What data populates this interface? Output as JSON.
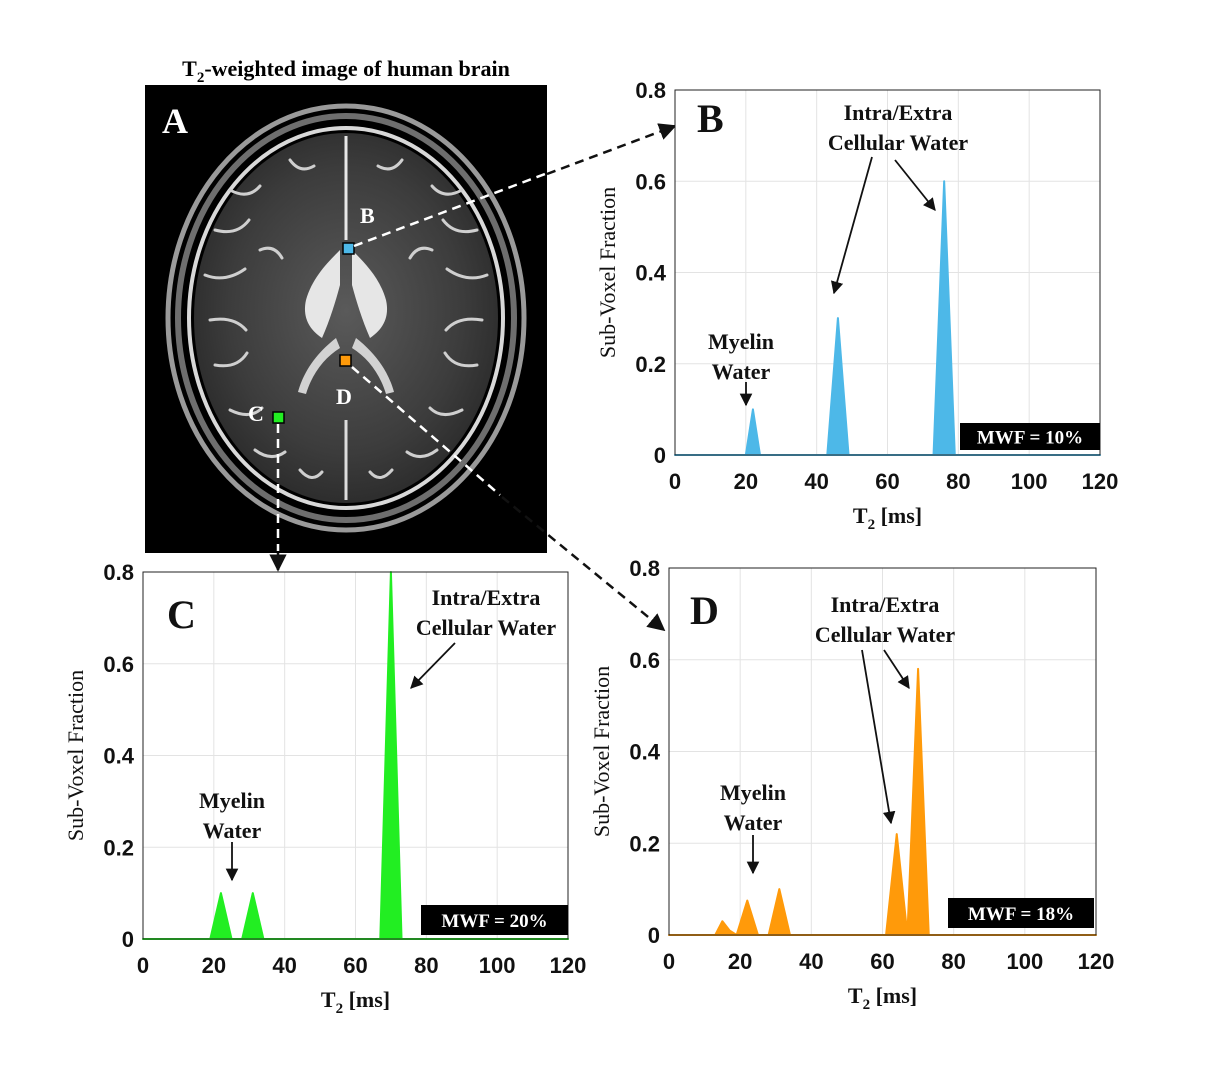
{
  "panel_a": {
    "title_prefix": "T",
    "title_sub": "2",
    "title_rest": "-weighted image of human brain",
    "letter": "A",
    "roi_labels": {
      "b": "B",
      "c": "C",
      "d": "D"
    }
  },
  "colors": {
    "b": "#4db8e8",
    "c": "#22ee22",
    "d": "#ff9a0a"
  },
  "chart_data": [
    {
      "id": "b",
      "type": "area",
      "panel_letter": "B",
      "xlabel_prefix": "T",
      "xlabel_sub": "2",
      "xlabel_rest": " [ms]",
      "ylabel": "Sub-Voxel Fraction",
      "xlim": [
        0,
        120
      ],
      "ylim": [
        0,
        0.8
      ],
      "xticks": [
        0,
        20,
        40,
        60,
        80,
        100,
        120
      ],
      "yticks": [
        0,
        0.2,
        0.4,
        0.6,
        0.8
      ],
      "grid": true,
      "mwf": "MWF = 10%",
      "annotations": {
        "myelin": [
          "Myelin",
          "Water"
        ],
        "ie": [
          "Intra/Extra",
          "Cellular Water"
        ]
      },
      "x": [
        0,
        20,
        22,
        24,
        43,
        46,
        49,
        73,
        76,
        79,
        120
      ],
      "y": [
        0,
        0,
        0.1,
        0,
        0,
        0.3,
        0,
        0,
        0.6,
        0,
        0
      ]
    },
    {
      "id": "c",
      "type": "area",
      "panel_letter": "C",
      "xlabel_prefix": "T",
      "xlabel_sub": "2",
      "xlabel_rest": " [ms]",
      "ylabel": "Sub-Voxel Fraction",
      "xlim": [
        0,
        120
      ],
      "ylim": [
        0,
        0.8
      ],
      "xticks": [
        0,
        20,
        40,
        60,
        80,
        100,
        120
      ],
      "yticks": [
        0,
        0.2,
        0.4,
        0.6,
        0.8
      ],
      "grid": true,
      "mwf": "MWF = 20%",
      "annotations": {
        "myelin": [
          "Myelin",
          "Water"
        ],
        "ie": [
          "Intra/Extra",
          "Cellular Water"
        ]
      },
      "x": [
        0,
        19,
        22,
        25,
        28,
        31,
        34,
        67,
        70,
        73,
        120
      ],
      "y": [
        0,
        0,
        0.1,
        0,
        0,
        0.1,
        0,
        0,
        0.8,
        0,
        0
      ]
    },
    {
      "id": "d",
      "type": "area",
      "panel_letter": "D",
      "xlabel_prefix": "T",
      "xlabel_sub": "2",
      "xlabel_rest": " [ms]",
      "ylabel": "Sub-Voxel Fraction",
      "xlim": [
        0,
        120
      ],
      "ylim": [
        0,
        0.8
      ],
      "xticks": [
        0,
        20,
        40,
        60,
        80,
        100,
        120
      ],
      "yticks": [
        0,
        0.2,
        0.4,
        0.6,
        0.8
      ],
      "grid": true,
      "mwf": "MWF = 18%",
      "annotations": {
        "myelin": [
          "Myelin",
          "Water"
        ],
        "ie": [
          "Intra/Extra",
          "Cellular Water"
        ]
      },
      "x": [
        0,
        13,
        15,
        17,
        19,
        22,
        25,
        28,
        31,
        34,
        61,
        64,
        67,
        70,
        73,
        120
      ],
      "y": [
        0,
        0,
        0.03,
        0.01,
        0,
        0.075,
        0,
        0,
        0.1,
        0,
        0,
        0.22,
        0,
        0.58,
        0,
        0
      ]
    }
  ]
}
